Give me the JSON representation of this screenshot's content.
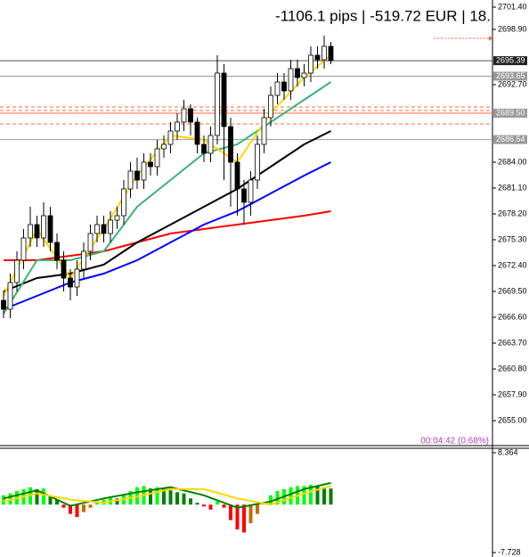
{
  "chart_data": [
    {
      "type": "candlestick",
      "title": "-1106.1 pips | -519.72 EUR | 18.",
      "annotation": "00:04:42 (0.68%)",
      "up_color": "#ffffff",
      "down_color": "#000000",
      "wick_color": "#000000",
      "open": [
        2668.5,
        2667.5,
        2670.5,
        2673,
        2675.5,
        2677,
        2675.5,
        2678,
        2675,
        2673,
        2671,
        2670,
        2672,
        2674,
        2676,
        2677,
        2676,
        2677.5,
        2678,
        2681,
        2683,
        2682,
        2684,
        2683.5,
        2685.5,
        2686,
        2687.5,
        2688.5,
        2690,
        2688.5,
        2686,
        2685,
        2687,
        2694,
        2688,
        2684,
        2681,
        2679.5,
        2682,
        2686,
        2689,
        2691.5,
        2693,
        2692,
        2694.5,
        2693.5,
        2694,
        2696,
        2695.5,
        2697
      ],
      "high": [
        2669.5,
        2671.5,
        2674,
        2676.5,
        2679,
        2678,
        2679.5,
        2679,
        2676,
        2674,
        2672,
        2673,
        2675,
        2677,
        2678,
        2678,
        2678.5,
        2679,
        2682,
        2684,
        2684.5,
        2685,
        2685,
        2686.5,
        2687,
        2688.5,
        2689.5,
        2691,
        2690.5,
        2689,
        2687,
        2688,
        2696,
        2695,
        2689,
        2685,
        2682,
        2683,
        2687,
        2690,
        2692.5,
        2694,
        2694,
        2695.5,
        2695.5,
        2695,
        2697,
        2697,
        2698.2,
        2697.5
      ],
      "low": [
        2666.5,
        2666.5,
        2669.5,
        2672,
        2674.5,
        2674.5,
        2674.5,
        2674,
        2672,
        2669.5,
        2668.5,
        2669,
        2671,
        2673,
        2675,
        2675,
        2675,
        2676.5,
        2677,
        2680,
        2681,
        2681,
        2682.5,
        2682.5,
        2684.5,
        2685,
        2686.5,
        2687.5,
        2687,
        2685,
        2684,
        2684,
        2686,
        2682,
        2679,
        2678,
        2677,
        2678,
        2681,
        2685,
        2688,
        2690.5,
        2691,
        2691,
        2692.5,
        2692.5,
        2693,
        2694.5,
        2694.5,
        2695
      ],
      "close": [
        2667.5,
        2670.5,
        2673,
        2675.5,
        2677,
        2675.5,
        2678,
        2675,
        2673,
        2671,
        2670,
        2672,
        2674,
        2676,
        2677,
        2676,
        2677.5,
        2678,
        2681,
        2683,
        2682,
        2684,
        2683.5,
        2685.5,
        2686,
        2687.5,
        2688.5,
        2690,
        2688.5,
        2686,
        2685,
        2687,
        2694,
        2688,
        2684,
        2681,
        2679.5,
        2682,
        2686,
        2689,
        2691.5,
        2693,
        2692,
        2694.5,
        2693.5,
        2694,
        2696,
        2695.5,
        2697,
        2695.4
      ],
      "lines": [
        {
          "color": "#ff0000",
          "x": [
            0,
            5,
            10,
            15,
            20,
            25,
            30,
            35,
            40,
            45,
            49
          ],
          "values": [
            2673,
            2673,
            2673.5,
            2674,
            2675,
            2676,
            2676.5,
            2677,
            2677.5,
            2678,
            2678.5
          ]
        },
        {
          "color": "#0000ff",
          "x": [
            0,
            5,
            10,
            15,
            20,
            25,
            30,
            35,
            40,
            45,
            49
          ],
          "values": [
            2667.5,
            2669,
            2670.5,
            2671.5,
            2673,
            2675,
            2677,
            2678.5,
            2680.5,
            2682.5,
            2684
          ]
        },
        {
          "color": "#000000",
          "x": [
            0,
            5,
            10,
            15,
            20,
            25,
            30,
            35,
            40,
            45,
            49
          ],
          "values": [
            2669.5,
            2671,
            2671.5,
            2672.5,
            2675,
            2677,
            2679,
            2681,
            2683.5,
            2686,
            2687.5
          ]
        },
        {
          "color": "#3cb371",
          "x": [
            0,
            5,
            10,
            15,
            20,
            25,
            30,
            35,
            40,
            45,
            49
          ],
          "values": [
            2667,
            2673,
            2673,
            2674,
            2679,
            2682,
            2685,
            2686,
            2688.5,
            2691,
            2693
          ]
        },
        {
          "color": "#ffd700",
          "x": [
            0,
            5,
            10,
            15,
            20,
            25,
            30,
            35,
            40,
            45,
            49
          ],
          "values": [
            2669,
            2676.5,
            2671,
            2676.5,
            2682.5,
            2687,
            2686.5,
            2684,
            2689.5,
            2693.5,
            2696
          ]
        }
      ],
      "levels": [
        {
          "value": 2695.39,
          "label": "2695.39",
          "color": "#555555",
          "box_color": "#222222"
        },
        {
          "value": 2693.65,
          "label": "2693.65",
          "color": "#999999",
          "box_color": "#999999"
        },
        {
          "value": 2690.2,
          "color": "#ff6a3d"
        },
        {
          "value": 2689.8,
          "color": "#ff6a3d"
        },
        {
          "value": 2689.5,
          "label": "2689.50",
          "color": "#ff6a3d",
          "box_color": "#999999"
        },
        {
          "value": 2688.3,
          "color": "#ff6a3d"
        },
        {
          "value": 2686.54,
          "label": "2686.54",
          "color": "#999999",
          "box_color": "#999999"
        }
      ],
      "ylim": [
        2652.2,
        2702.2
      ],
      "yticks": [
        {
          "value": 2701.4,
          "label": "2701.40"
        },
        {
          "value": 2698.9,
          "label": "2698.90"
        },
        {
          "value": 2692.7,
          "label": "2692.70"
        },
        {
          "value": 2684,
          "label": "2684.00"
        },
        {
          "value": 2681.1,
          "label": "2681.10"
        },
        {
          "value": 2678.2,
          "label": "2678.20"
        },
        {
          "value": 2675.3,
          "label": "2675.30"
        },
        {
          "value": 2672.4,
          "label": "2672.40"
        },
        {
          "value": 2669.5,
          "label": "2669.50"
        },
        {
          "value": 2666.6,
          "label": "2666.60"
        },
        {
          "value": 2663.7,
          "label": "2663.70"
        },
        {
          "value": 2660.8,
          "label": "2660.80"
        },
        {
          "value": 2657.9,
          "label": "2657.90"
        },
        {
          "value": 2655,
          "label": "2655.00"
        }
      ]
    },
    {
      "type": "macd",
      "values": [
        1.5,
        1.8,
        2.2,
        2.5,
        2.8,
        2.5,
        2.6,
        1.5,
        0.8,
        -0.5,
        -1.5,
        -2.0,
        -1.2,
        -0.5,
        0.5,
        0.8,
        1.2,
        1.0,
        1.5,
        2.2,
        2.8,
        3.0,
        2.6,
        2.8,
        2.5,
        2.3,
        2.0,
        1.8,
        1.0,
        0.3,
        -0.3,
        -0.8,
        0.5,
        -0.5,
        -2.5,
        -4.0,
        -4.5,
        -3.0,
        -1.5,
        0.3,
        1.5,
        2.2,
        2.5,
        2.8,
        3.0,
        3.0,
        3.2,
        3.0,
        2.8,
        2.6
      ],
      "colors": {
        "up_rising": "#00ff00",
        "up_falling": "#008000",
        "down_falling": "#ff0000",
        "down_rising": "#cc6600"
      },
      "lines": [
        {
          "color": "#008000",
          "x": [
            0,
            5,
            10,
            15,
            20,
            25,
            30,
            35,
            40,
            45,
            49
          ],
          "values": [
            1.0,
            2.3,
            -0.2,
            1.0,
            2.0,
            2.8,
            1.5,
            -0.5,
            0.5,
            2.5,
            3.5
          ]
        },
        {
          "color": "#ffd700",
          "x": [
            0,
            5,
            10,
            15,
            20,
            25,
            30,
            35,
            40,
            45,
            49
          ],
          "values": [
            0.5,
            1.8,
            0.8,
            0.3,
            1.3,
            2.5,
            2.5,
            1.0,
            0.0,
            1.8,
            3.0
          ]
        }
      ],
      "ylim": [
        -7.728,
        8.364
      ],
      "yticks": [
        8.364,
        -7.728
      ]
    }
  ]
}
